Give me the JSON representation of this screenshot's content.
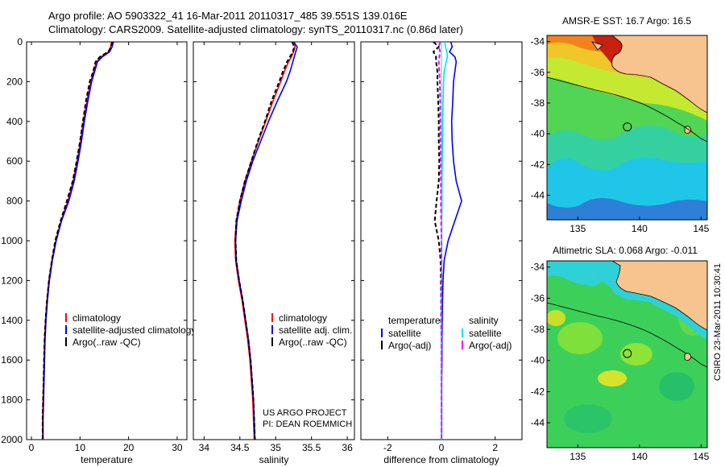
{
  "header": {
    "line1": "Argo profile: AO 5903322_41 16-Mar-2011 20110317_485 39.551S 139.016E",
    "line2": "Climatology: CARS2009. Satellite-adjusted climatology: synTS_20110317.nc (0.86d later)"
  },
  "credits": {
    "project": "US ARGO PROJECT",
    "pi": "PI: DEAN ROEMMICH",
    "stamp": "CSIRO 23-Mar-2011 10:30:41"
  },
  "colors": {
    "climatology": "#ff0000",
    "satellite": "#0000ff",
    "argo": "#000000",
    "sal_satellite": "#00e5e5",
    "sal_argo": "#ff00ff",
    "land": "#f7c48f",
    "coast": "#000000"
  },
  "chart_data": [
    {
      "id": "temperature",
      "type": "line",
      "xlabel": "temperature",
      "ylabel": "",
      "xlim": [
        -1,
        32
      ],
      "ylim": [
        2000,
        0
      ],
      "xticks": [
        0,
        10,
        20,
        30
      ],
      "yticks": [
        0,
        200,
        400,
        600,
        800,
        1000,
        1200,
        1400,
        1600,
        1800,
        2000
      ],
      "legend": [
        "climatology",
        "satellite-adjusted climatology",
        "Argo(..raw -QC)"
      ],
      "depth": [
        0,
        25,
        50,
        75,
        100,
        150,
        200,
        300,
        400,
        500,
        600,
        700,
        800,
        900,
        1000,
        1100,
        1200,
        1300,
        1400,
        1500,
        1600,
        1700,
        1800,
        1900,
        2000
      ],
      "series": [
        {
          "name": "climatology",
          "color": "#ff0000",
          "values": [
            16.5,
            16.3,
            15.9,
            14.3,
            13.4,
            12.8,
            12.2,
            11.4,
            10.7,
            10.1,
            9.4,
            8.6,
            7.5,
            6.1,
            5.0,
            4.2,
            3.6,
            3.2,
            2.9,
            2.7,
            2.6,
            2.5,
            2.4,
            2.3,
            2.3
          ]
        },
        {
          "name": "satellite-adjusted climatology",
          "color": "#0000ff",
          "values": [
            16.9,
            16.6,
            16.1,
            14.6,
            13.6,
            13.0,
            12.4,
            11.6,
            10.9,
            10.3,
            9.6,
            8.8,
            7.7,
            6.2,
            5.1,
            4.3,
            3.7,
            3.3,
            3.0,
            2.8,
            2.7,
            2.6,
            2.5,
            2.4,
            2.4
          ]
        },
        {
          "name": "Argo(..raw -QC)",
          "color": "#000000",
          "dash": "5,3",
          "values": [
            16.6,
            16.4,
            15.8,
            14.1,
            13.2,
            12.7,
            12.0,
            11.2,
            10.6,
            10.0,
            9.3,
            8.5,
            7.3,
            6.0,
            4.9,
            4.2,
            3.6,
            3.2,
            2.9,
            2.7,
            2.6,
            2.5,
            2.4,
            2.3,
            2.3
          ]
        }
      ]
    },
    {
      "id": "salinity",
      "type": "line",
      "xlabel": "salinity",
      "ylabel": "",
      "xlim": [
        33.85,
        36.1
      ],
      "ylim": [
        2000,
        0
      ],
      "xticks": [
        34,
        34.5,
        35,
        35.5,
        36
      ],
      "yticks": [
        0,
        200,
        400,
        600,
        800,
        1000,
        1200,
        1400,
        1600,
        1800,
        2000
      ],
      "legend": [
        "climatology",
        "satellite adj. clim.",
        "Argo(..raw -QC)"
      ],
      "depth": [
        0,
        25,
        50,
        75,
        100,
        150,
        200,
        300,
        400,
        500,
        600,
        700,
        800,
        900,
        1000,
        1100,
        1200,
        1300,
        1400,
        1500,
        1600,
        1700,
        1800,
        1900,
        2000
      ],
      "series": [
        {
          "name": "climatology",
          "color": "#ff0000",
          "values": [
            35.26,
            35.27,
            35.25,
            35.22,
            35.18,
            35.12,
            35.07,
            34.96,
            34.86,
            34.76,
            34.66,
            34.57,
            34.5,
            34.45,
            34.43,
            34.44,
            34.48,
            34.53,
            34.57,
            34.61,
            34.64,
            34.66,
            34.68,
            34.69,
            34.7
          ]
        },
        {
          "name": "satellite adj. clim.",
          "color": "#0000ff",
          "values": [
            35.25,
            35.3,
            35.28,
            35.26,
            35.24,
            35.2,
            35.15,
            35.02,
            34.9,
            34.79,
            34.68,
            34.59,
            34.52,
            34.46,
            34.44,
            34.45,
            34.49,
            34.54,
            34.58,
            34.62,
            34.65,
            34.67,
            34.69,
            34.7,
            34.71
          ]
        },
        {
          "name": "Argo(..raw -QC)",
          "color": "#000000",
          "dash": "5,3",
          "values": [
            35.23,
            35.26,
            35.24,
            35.2,
            35.16,
            35.1,
            35.05,
            34.94,
            34.85,
            34.75,
            34.66,
            34.57,
            34.5,
            34.45,
            34.44,
            34.45,
            34.49,
            34.54,
            34.58,
            34.62,
            34.65,
            34.67,
            34.69,
            34.7,
            34.71
          ]
        }
      ]
    },
    {
      "id": "difference",
      "type": "line",
      "xlabel": "difference from climatology",
      "ylabel": "",
      "xlim": [
        -3,
        3
      ],
      "ylim": [
        2000,
        0
      ],
      "xticks": [
        -2,
        0,
        2
      ],
      "yticks": [
        0,
        200,
        400,
        600,
        800,
        1000,
        1200,
        1400,
        1600,
        1800,
        2000
      ],
      "legend_titles": [
        "temperature",
        "salinity"
      ],
      "legend": [
        "satellite",
        "Argo(-adj)",
        "satellite",
        "Argo(-adj)"
      ],
      "depth": [
        0,
        25,
        50,
        75,
        100,
        150,
        200,
        300,
        400,
        500,
        600,
        700,
        800,
        900,
        1000,
        1100,
        1200,
        1300,
        1400,
        1500,
        1600,
        1700,
        1800,
        1900,
        2000
      ],
      "series": [
        {
          "name": "satellite",
          "group": "temperature",
          "color": "#0000ff",
          "values": [
            0.35,
            0.4,
            0.3,
            0.5,
            0.55,
            0.5,
            0.45,
            0.42,
            0.38,
            0.4,
            0.45,
            0.55,
            0.75,
            0.5,
            0.25,
            0.1,
            0.06,
            0.04,
            0.03,
            0.02,
            0.02,
            0.01,
            0.01,
            0.01,
            0.01
          ]
        },
        {
          "name": "Argo(-adj)",
          "group": "temperature",
          "color": "#000000",
          "dash": "5,3",
          "values": [
            -0.3,
            -0.1,
            -0.3,
            -0.2,
            -0.2,
            -0.15,
            -0.15,
            -0.12,
            -0.1,
            -0.1,
            -0.08,
            -0.1,
            -0.18,
            -0.25,
            -0.1,
            -0.03,
            -0.02,
            -0.01,
            -0.01,
            0.0,
            0.0,
            0.0,
            0.0,
            0.0,
            0.0
          ]
        },
        {
          "name": "satellite",
          "group": "salinity",
          "color": "#00e5e5",
          "values": [
            0.12,
            0.15,
            0.2,
            0.22,
            0.18,
            0.1,
            0.08,
            0.06,
            0.05,
            0.04,
            0.03,
            0.02,
            0.02,
            0.01,
            0.01,
            0.01,
            0.01,
            0.0,
            0.0,
            0.0,
            0.0,
            0.0,
            0.0,
            0.0,
            0.0
          ]
        },
        {
          "name": "Argo(-adj)",
          "group": "salinity",
          "color": "#ff00ff",
          "dash": "5,3",
          "values": [
            -0.05,
            -0.1,
            -0.05,
            -0.08,
            -0.1,
            -0.08,
            -0.06,
            -0.05,
            -0.04,
            -0.04,
            -0.03,
            -0.02,
            -0.02,
            -0.01,
            0.0,
            0.0,
            0.0,
            0.0,
            0.0,
            0.0,
            0.0,
            0.0,
            0.0,
            0.0,
            0.0
          ]
        }
      ]
    },
    {
      "id": "sst-map",
      "type": "heatmap",
      "title": "AMSR-E SST: 16.7  Argo: 16.5",
      "xlim": [
        132.5,
        145.5
      ],
      "ylim": [
        -45.6,
        -33.6
      ],
      "xticks": [
        135,
        140,
        145
      ],
      "yticks": [
        -34,
        -36,
        -38,
        -40,
        -42,
        -44
      ],
      "marker": {
        "lon": 139.016,
        "lat": -39.551
      }
    },
    {
      "id": "sla-map",
      "type": "heatmap",
      "title": "Altimetric SLA: 0.068  Argo: -0.011",
      "xlim": [
        132.5,
        145.5
      ],
      "ylim": [
        -45.6,
        -33.6
      ],
      "xticks": [
        135,
        140,
        145
      ],
      "yticks": [
        -34,
        -36,
        -38,
        -40,
        -42,
        -44
      ],
      "marker": {
        "lon": 139.016,
        "lat": -39.551
      }
    }
  ]
}
